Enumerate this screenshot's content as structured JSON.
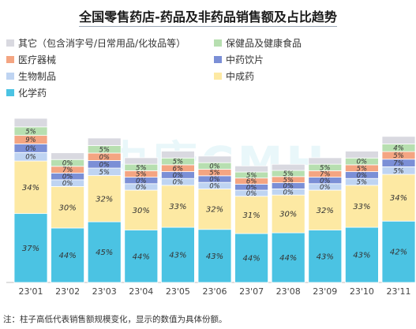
{
  "title": "全国零售药店-药品及非药品销售额及占比趋势",
  "note": "注：柱子高低代表销售额规模变化，显示的数值为具体份额。",
  "watermark": "中康CMH",
  "legend": [
    {
      "name": "其它（包含消字号/日常用品/化妆品等）",
      "color": "#d9d9e0"
    },
    {
      "name": "保健品及健康食品",
      "color": "#b7dfb0"
    },
    {
      "name": "医疗器械",
      "color": "#f4a582"
    },
    {
      "name": "中药饮片",
      "color": "#7b8fd6"
    },
    {
      "name": "生物制品",
      "color": "#bfd4f2"
    },
    {
      "name": "中成药",
      "color": "#fde9a3"
    },
    {
      "name": "化学药",
      "color": "#4bc3e3"
    }
  ],
  "chart_data": {
    "type": "bar",
    "stacked": true,
    "categories": [
      "23'01",
      "23'02",
      "23'03",
      "23'04",
      "23'05",
      "23'06",
      "23'07",
      "23'08",
      "23'09",
      "23'10",
      "23'11"
    ],
    "relative_height": [
      1.0,
      0.79,
      0.88,
      0.76,
      0.8,
      0.77,
      0.71,
      0.72,
      0.76,
      0.8,
      0.89
    ],
    "series": [
      {
        "name": "化学药",
        "color": "#4bc3e3",
        "labels": [
          "37%",
          "44%",
          "45%",
          "44%",
          "43%",
          "43%",
          "44%",
          "44%",
          "43%",
          "43%",
          "42%"
        ]
      },
      {
        "name": "中成药",
        "color": "#fde9a3",
        "labels": [
          "34%",
          "30%",
          "32%",
          "30%",
          "33%",
          "32%",
          "31%",
          "30%",
          "32%",
          "33%",
          "34%"
        ]
      },
      {
        "name": "生物制品",
        "color": "#bfd4f2",
        "labels": [
          "0%",
          "0%",
          "5%",
          "0%",
          "0%",
          "0%",
          "0%",
          "0%",
          "0%",
          "5%",
          "5%"
        ]
      },
      {
        "name": "中药饮片",
        "color": "#7b8fd6",
        "labels": [
          "0%",
          "0%",
          "0%",
          "0%",
          "0%",
          "0%",
          "0%",
          "0%",
          "0%",
          "0%",
          "7%"
        ]
      },
      {
        "name": "医疗器械",
        "color": "#f4a582",
        "labels": [
          "9%",
          "7%",
          "0%",
          "5%",
          "6%",
          "5%",
          "6%",
          "5%",
          "7%",
          "5%",
          "5%"
        ]
      },
      {
        "name": "保健品及健康食品",
        "color": "#b7dfb0",
        "labels": [
          "5%",
          "0%",
          "5%",
          "5%",
          "5%",
          "0%",
          "5%",
          "5%",
          "5%",
          "0%",
          "4%"
        ]
      },
      {
        "name": "其它（包含消字号/日常用品/化妆品等）",
        "color": "#d9d9e0",
        "labels": [
          "",
          "",
          "",
          "",
          "",
          "",
          "",
          "",
          "",
          "",
          ""
        ]
      }
    ]
  }
}
